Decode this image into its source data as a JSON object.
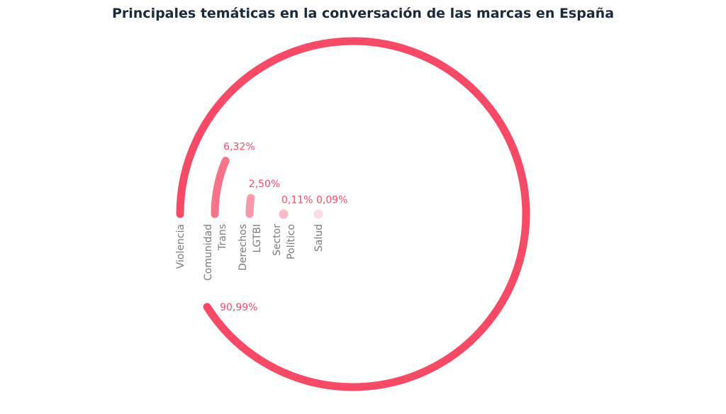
{
  "chart_data": {
    "type": "radial-bar",
    "title": "Principales temáticas en la conversación de las marcas en España",
    "unit": "%",
    "max_value": 100,
    "categories": [
      [
        "Violencia"
      ],
      [
        "Comunidad",
        "Trans"
      ],
      [
        "Derechos",
        "LGTBI"
      ],
      [
        "Sector",
        "Político"
      ],
      [
        "Salud"
      ]
    ],
    "values": [
      90.99,
      6.32,
      2.5,
      0.11,
      0.09
    ],
    "value_labels": [
      "90,99%",
      "6,32%",
      "2,50%",
      "0,11%",
      "0,09%"
    ],
    "colors": [
      "#f64a66",
      "#f7738a",
      "#f898aa",
      "#fbbac6",
      "#fcdde3"
    ],
    "label_color": "#f64a66",
    "grid": false,
    "legend": "none"
  }
}
